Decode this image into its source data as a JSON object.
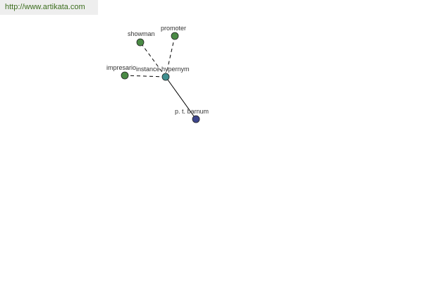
{
  "header": {
    "link_text": "http://www.artikata.com"
  },
  "graph": {
    "center": {
      "label": "instance hypernym",
      "color": "#3f8f8f"
    },
    "nodes": [
      {
        "label": "showman",
        "color": "#4a8a45",
        "edge": "dashed"
      },
      {
        "label": "promoter",
        "color": "#4a8a45",
        "edge": "dashed"
      },
      {
        "label": "impresario",
        "color": "#4a8a45",
        "edge": "dashed"
      },
      {
        "label": "p. t. barnum",
        "color": "#3d468c",
        "edge": "solid"
      }
    ]
  }
}
